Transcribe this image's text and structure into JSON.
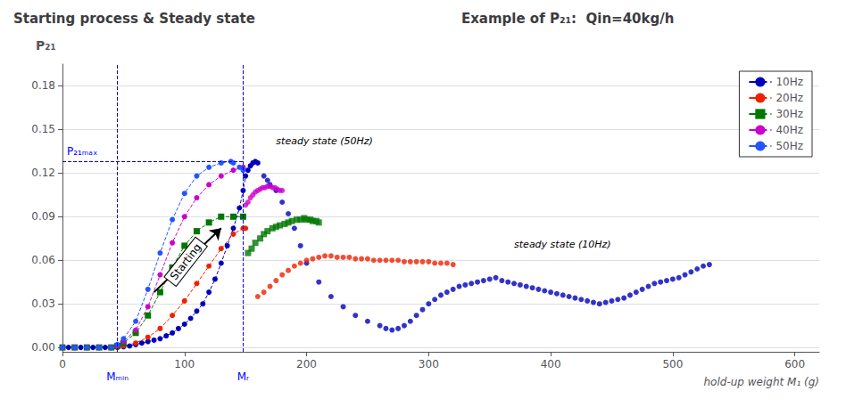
{
  "chart_data": {
    "type": "line",
    "title": "Starting process & Steady state",
    "subtitle": "Example of P₂₁:  Qin=40kg/h",
    "ylabel": "P₂₁",
    "xlabel": "hold-up weight M₁ (g)",
    "xlim": [
      0,
      620
    ],
    "ylim": [
      -0.003,
      0.195
    ],
    "xticks": [
      0,
      100,
      200,
      300,
      400,
      500,
      600
    ],
    "yticks": [
      {
        "value": 0,
        "label": "0.00"
      },
      0.03,
      0.06,
      0.09,
      0.12,
      0.15,
      0.18
    ],
    "grid": true,
    "legend": "upper right",
    "series": [
      {
        "name": "10Hz",
        "type": "line",
        "line_style": "dashed",
        "marker": "circle",
        "color": "#0000bb",
        "x": [
          0,
          5,
          10,
          15,
          20,
          25,
          30,
          35,
          40,
          45,
          50,
          55,
          60,
          65,
          70,
          75,
          80,
          85,
          90,
          95,
          100,
          105,
          110,
          115,
          120,
          125,
          130,
          135,
          140,
          145,
          148,
          150,
          152,
          154,
          156,
          158,
          160
        ],
        "values": [
          0,
          0,
          0,
          0,
          0,
          0,
          0,
          0,
          0,
          0,
          0.0005,
          0.001,
          0.002,
          0.003,
          0.004,
          0.005,
          0.006,
          0.008,
          0.01,
          0.013,
          0.016,
          0.02,
          0.025,
          0.03,
          0.038,
          0.047,
          0.058,
          0.07,
          0.082,
          0.096,
          0.108,
          0.118,
          0.122,
          0.125,
          0.127,
          0.128,
          0.127
        ]
      },
      {
        "name": "10Hz",
        "type": "scatter",
        "marker": "circle",
        "color": "#0000bb",
        "x": [
          165,
          168,
          170,
          175,
          180,
          185,
          190,
          195,
          200,
          210,
          220,
          230,
          240,
          250,
          260,
          265,
          270,
          275,
          280,
          285,
          290,
          295,
          300,
          305,
          310,
          315,
          320,
          325,
          330,
          335,
          340,
          345,
          350,
          355,
          360,
          365,
          370,
          375,
          380,
          385,
          390,
          395,
          400,
          405,
          410,
          415,
          420,
          425,
          430,
          435,
          440,
          445,
          450,
          455,
          460,
          465,
          470,
          475,
          480,
          485,
          490,
          495,
          500,
          505,
          510,
          515,
          520,
          525,
          530
        ],
        "values": [
          0.118,
          0.115,
          0.112,
          0.108,
          0.1,
          0.092,
          0.082,
          0.07,
          0.058,
          0.045,
          0.035,
          0.028,
          0.022,
          0.018,
          0.015,
          0.013,
          0.012,
          0.013,
          0.015,
          0.018,
          0.022,
          0.026,
          0.03,
          0.033,
          0.036,
          0.038,
          0.04,
          0.042,
          0.043,
          0.044,
          0.045,
          0.046,
          0.047,
          0.048,
          0.046,
          0.045,
          0.044,
          0.043,
          0.042,
          0.041,
          0.04,
          0.039,
          0.038,
          0.037,
          0.036,
          0.035,
          0.034,
          0.033,
          0.032,
          0.031,
          0.03,
          0.031,
          0.032,
          0.033,
          0.034,
          0.036,
          0.038,
          0.04,
          0.042,
          0.044,
          0.045,
          0.046,
          0.047,
          0.048,
          0.05,
          0.052,
          0.054,
          0.056,
          0.057
        ]
      },
      {
        "name": "20Hz",
        "type": "line",
        "line_style": "dashed",
        "marker": "circle",
        "color": "#ee2200",
        "x": [
          0,
          10,
          20,
          30,
          40,
          45,
          50,
          60,
          70,
          80,
          90,
          100,
          110,
          120,
          130,
          140,
          148,
          150
        ],
        "values": [
          0,
          0,
          0,
          0,
          0,
          0,
          0.001,
          0.003,
          0.007,
          0.013,
          0.022,
          0.032,
          0.044,
          0.056,
          0.068,
          0.078,
          0.082,
          0.082
        ]
      },
      {
        "name": "20Hz",
        "type": "scatter",
        "marker": "circle",
        "color": "#ee2200",
        "x": [
          160,
          165,
          170,
          175,
          180,
          185,
          190,
          195,
          200,
          205,
          210,
          215,
          220,
          225,
          230,
          235,
          240,
          245,
          250,
          255,
          260,
          265,
          270,
          275,
          280,
          285,
          290,
          295,
          300,
          305,
          310,
          315,
          320
        ],
        "values": [
          0.035,
          0.038,
          0.042,
          0.046,
          0.05,
          0.053,
          0.056,
          0.058,
          0.06,
          0.061,
          0.062,
          0.063,
          0.063,
          0.062,
          0.062,
          0.062,
          0.061,
          0.061,
          0.061,
          0.06,
          0.06,
          0.06,
          0.06,
          0.06,
          0.059,
          0.059,
          0.059,
          0.059,
          0.059,
          0.058,
          0.058,
          0.058,
          0.057
        ]
      },
      {
        "name": "30Hz",
        "type": "line",
        "line_style": "dashed",
        "marker": "square",
        "color": "#007700",
        "x": [
          0,
          10,
          20,
          30,
          40,
          45,
          50,
          60,
          70,
          80,
          90,
          100,
          110,
          120,
          130,
          140,
          148
        ],
        "values": [
          0,
          0,
          0,
          0,
          0,
          0.001,
          0.003,
          0.01,
          0.022,
          0.038,
          0.055,
          0.07,
          0.08,
          0.086,
          0.09,
          0.09,
          0.09
        ]
      },
      {
        "name": "30Hz",
        "type": "scatter",
        "marker": "square",
        "color": "#007700",
        "x": [
          152,
          155,
          158,
          162,
          165,
          168,
          172,
          175,
          178,
          182,
          185,
          188,
          192,
          195,
          198,
          200,
          203,
          205,
          208,
          210
        ],
        "values": [
          0.065,
          0.068,
          0.072,
          0.075,
          0.078,
          0.08,
          0.082,
          0.083,
          0.084,
          0.085,
          0.086,
          0.087,
          0.088,
          0.088,
          0.089,
          0.088,
          0.088,
          0.087,
          0.087,
          0.086
        ]
      },
      {
        "name": "40Hz",
        "type": "line",
        "line_style": "dashed",
        "marker": "circle",
        "color": "#cc00cc",
        "x": [
          0,
          10,
          20,
          30,
          40,
          45,
          50,
          60,
          70,
          80,
          90,
          100,
          110,
          120,
          130,
          140,
          148
        ],
        "values": [
          0,
          0,
          0,
          0,
          0,
          0.001,
          0.004,
          0.012,
          0.028,
          0.05,
          0.072,
          0.09,
          0.103,
          0.112,
          0.118,
          0.122,
          0.124
        ]
      },
      {
        "name": "40Hz",
        "type": "scatter",
        "marker": "circle",
        "color": "#cc00cc",
        "x": [
          150,
          152,
          154,
          156,
          158,
          160,
          162,
          164,
          166,
          168,
          170,
          172,
          174,
          176,
          178,
          180
        ],
        "values": [
          0.098,
          0.1,
          0.103,
          0.105,
          0.107,
          0.108,
          0.109,
          0.11,
          0.11,
          0.111,
          0.111,
          0.11,
          0.11,
          0.109,
          0.108,
          0.108
        ]
      },
      {
        "name": "50Hz",
        "type": "line",
        "line_style": "dashed",
        "marker": "circle",
        "color": "#2255ff",
        "x": [
          0,
          10,
          20,
          30,
          40,
          45,
          50,
          60,
          70,
          80,
          90,
          100,
          110,
          120,
          130,
          138,
          140,
          145,
          148
        ],
        "values": [
          0,
          0,
          0,
          0,
          0,
          0.002,
          0.006,
          0.018,
          0.04,
          0.065,
          0.088,
          0.106,
          0.118,
          0.124,
          0.127,
          0.128,
          0.127,
          0.124,
          0.122
        ]
      }
    ],
    "reference_lines": [
      {
        "axis": "x",
        "value": 45,
        "label": "Mₘᵢₙ",
        "color": "blue"
      },
      {
        "axis": "x",
        "value": 148,
        "label": "Mᵣ",
        "color": "blue"
      },
      {
        "axis": "y",
        "value": 0.128,
        "x_end": 148,
        "label": "P₂₁ₘₐₓ",
        "color": "blue"
      }
    ],
    "annotations": [
      {
        "text": "steady state (50Hz)",
        "x": 175,
        "y": 0.138,
        "color": "black"
      },
      {
        "text": "steady state (10Hz)",
        "x": 370,
        "y": 0.067,
        "color": "black"
      }
    ],
    "arrow": {
      "text": "Starting",
      "x": 101,
      "y": 0.059,
      "from": [
        75,
        0.038
      ],
      "to": [
        130,
        0.082
      ],
      "color": "black"
    }
  }
}
